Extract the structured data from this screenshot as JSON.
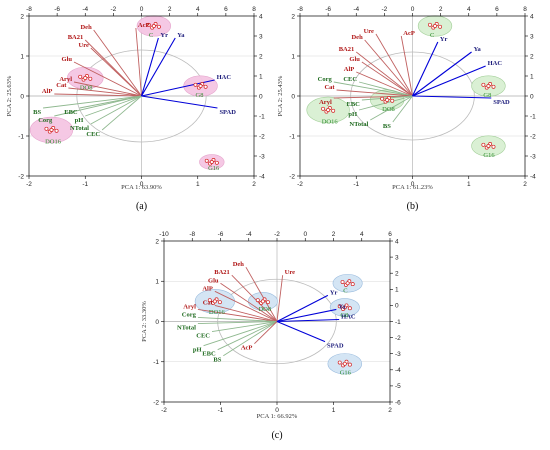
{
  "colors": {
    "red_label": "#b01515",
    "green_label": "#1f6b1f",
    "blue_label": "#1a1a7a",
    "vector_red": "#c06060",
    "vector_green": "#8fb88f",
    "vector_blue": "#0000d8",
    "point": "#d42020",
    "pink_fill": "#f5c6e3",
    "green_fill": "#d9f0d2",
    "blue_fill": "#d2e4f4"
  },
  "chart_data": [
    {
      "type": "scatter",
      "subtype": "pca-biplot",
      "panel_label": "(a)",
      "xlabel": "PCA 1: 63.90%",
      "ylabel": "PCA 2: 25.63%",
      "xlim": [
        -2,
        2
      ],
      "ylim": [
        -2,
        2
      ],
      "x_ticks": [
        "-2",
        "-1",
        "0",
        "1",
        "2"
      ],
      "y_ticks": [
        "2",
        "1",
        "0",
        "-1",
        "-2"
      ],
      "top_xlim": [
        -8,
        8
      ],
      "top_ticks": [
        "-8",
        "-6",
        "-4",
        "-2",
        "0",
        "2",
        "4",
        "6",
        "8"
      ],
      "right_ylim": [
        -4,
        4
      ],
      "right_ticks": [
        "4",
        "3",
        "2",
        "1",
        "0",
        "-1",
        "-2",
        "-3",
        "-4"
      ],
      "highlight_fill": "pink_fill",
      "variables": [
        {
          "name": "Deh",
          "group": "red",
          "x": -0.85,
          "y": 1.65
        },
        {
          "name": "AcP",
          "group": "red",
          "x": -0.1,
          "y": 1.7
        },
        {
          "name": "BA21",
          "group": "red",
          "x": -1.0,
          "y": 1.4
        },
        {
          "name": "Ure",
          "group": "red",
          "x": -0.9,
          "y": 1.2
        },
        {
          "name": "Glu",
          "group": "red",
          "x": -1.2,
          "y": 0.85
        },
        {
          "name": "Aryl",
          "group": "red",
          "x": -1.2,
          "y": 0.35
        },
        {
          "name": "Cat",
          "group": "red",
          "x": -1.3,
          "y": 0.2
        },
        {
          "name": "AlP",
          "group": "red",
          "x": -1.55,
          "y": 0.05
        },
        {
          "name": "BS",
          "group": "green",
          "x": -1.75,
          "y": -0.3
        },
        {
          "name": "Corg",
          "group": "green",
          "x": -1.55,
          "y": -0.5
        },
        {
          "name": "EBC",
          "group": "green",
          "x": -1.1,
          "y": -0.3
        },
        {
          "name": "pH",
          "group": "green",
          "x": -1.0,
          "y": -0.5
        },
        {
          "name": "NTotal",
          "group": "green",
          "x": -0.9,
          "y": -0.7
        },
        {
          "name": "CEC",
          "group": "green",
          "x": -0.7,
          "y": -0.85
        },
        {
          "name": "Yr",
          "group": "blue",
          "x": 0.3,
          "y": 1.45
        },
        {
          "name": "Ya",
          "group": "blue",
          "x": 0.6,
          "y": 1.45
        },
        {
          "name": "HAC",
          "group": "blue",
          "x": 1.3,
          "y": 0.4
        },
        {
          "name": "SPAD",
          "group": "blue",
          "x": 1.35,
          "y": -0.3
        }
      ],
      "groups": [
        {
          "name": "C",
          "x": 0.22,
          "y": 1.75,
          "r": 0.3
        },
        {
          "name": "DO8",
          "x": -1.0,
          "y": 0.45,
          "r": 0.32
        },
        {
          "name": "G8",
          "x": 1.05,
          "y": 0.25,
          "r": 0.3
        },
        {
          "name": "DO16",
          "x": -1.6,
          "y": -0.85,
          "r": 0.38
        },
        {
          "name": "G16",
          "x": 1.25,
          "y": -1.65,
          "r": 0.22
        }
      ],
      "circle_radius": 1.15
    },
    {
      "type": "scatter",
      "subtype": "pca-biplot",
      "panel_label": "(b)",
      "xlabel": "PCA 1: 61.23%",
      "ylabel": "PCA 2: 25.43%",
      "xlim": [
        -2,
        2
      ],
      "ylim": [
        -2,
        2
      ],
      "x_ticks": [
        "-2",
        "-1",
        "0",
        "1",
        "2"
      ],
      "y_ticks": [
        "2",
        "1",
        "0",
        "-1",
        "-2"
      ],
      "top_xlim": [
        -8,
        8
      ],
      "top_ticks": [
        "-8",
        "-6",
        "-4",
        "-2",
        "0",
        "2",
        "4",
        "6",
        "8"
      ],
      "right_ylim": [
        -4,
        4
      ],
      "right_ticks": [
        "4",
        "3",
        "2",
        "1",
        "0",
        "-1",
        "-2",
        "-3",
        "-4"
      ],
      "highlight_fill": "green_fill",
      "variables": [
        {
          "name": "Ure",
          "group": "red",
          "x": -0.65,
          "y": 1.55
        },
        {
          "name": "Deh",
          "group": "red",
          "x": -0.85,
          "y": 1.4
        },
        {
          "name": "AcP",
          "group": "red",
          "x": -0.2,
          "y": 1.5
        },
        {
          "name": "BA21",
          "group": "red",
          "x": -1.0,
          "y": 1.1
        },
        {
          "name": "Glu",
          "group": "red",
          "x": -0.9,
          "y": 0.85
        },
        {
          "name": "AlP",
          "group": "red",
          "x": -1.0,
          "y": 0.6
        },
        {
          "name": "Corg",
          "group": "green",
          "x": -1.4,
          "y": 0.35
        },
        {
          "name": "CEC",
          "group": "green",
          "x": -0.95,
          "y": 0.35
        },
        {
          "name": "Cat",
          "group": "red",
          "x": -1.35,
          "y": 0.15
        },
        {
          "name": "Aryl",
          "group": "red",
          "x": -1.4,
          "y": -0.05
        },
        {
          "name": "EBC",
          "group": "green",
          "x": -0.9,
          "y": -0.1
        },
        {
          "name": "pH",
          "group": "green",
          "x": -0.95,
          "y": -0.35
        },
        {
          "name": "NTotal",
          "group": "green",
          "x": -0.75,
          "y": -0.6
        },
        {
          "name": "BS",
          "group": "green",
          "x": -0.35,
          "y": -0.65
        },
        {
          "name": "Yr",
          "group": "blue",
          "x": 0.45,
          "y": 1.35
        },
        {
          "name": "Ya",
          "group": "blue",
          "x": 1.05,
          "y": 1.1
        },
        {
          "name": "HAC",
          "group": "blue",
          "x": 1.3,
          "y": 0.75
        },
        {
          "name": "SPAD",
          "group": "blue",
          "x": 1.4,
          "y": -0.05
        }
      ],
      "groups": [
        {
          "name": "C",
          "x": 0.4,
          "y": 1.75,
          "r": 0.3
        },
        {
          "name": "DO8",
          "x": -0.45,
          "y": -0.1,
          "r": 0.3
        },
        {
          "name": "G8",
          "x": 1.35,
          "y": 0.25,
          "r": 0.3
        },
        {
          "name": "DO16",
          "x": -1.5,
          "y": -0.35,
          "r": 0.38
        },
        {
          "name": "G16",
          "x": 1.35,
          "y": -1.25,
          "r": 0.3
        }
      ],
      "circle_radius": 1.1
    },
    {
      "type": "scatter",
      "subtype": "pca-biplot",
      "panel_label": "(c)",
      "xlabel": "PCA 1: 66.92%",
      "ylabel": "PCA 2: 33.30%",
      "xlim": [
        -2,
        2
      ],
      "ylim": [
        -2,
        2
      ],
      "x_ticks": [
        "-2",
        "-1",
        "0",
        "1",
        "2"
      ],
      "y_ticks": [
        "2",
        "1",
        "0",
        "-1",
        "-2"
      ],
      "top_xlim": [
        -10,
        6
      ],
      "top_ticks": [
        "-10",
        "-8",
        "-6",
        "-4",
        "-2",
        "0",
        "2",
        "4",
        "6"
      ],
      "right_ylim": [
        -6,
        4
      ],
      "right_ticks": [
        "4",
        "3",
        "2",
        "1",
        "0",
        "-1",
        "-2",
        "-3",
        "-4",
        "-5",
        "-6"
      ],
      "highlight_fill": "blue_fill",
      "variables": [
        {
          "name": "Deh",
          "group": "red",
          "x": -0.55,
          "y": 1.35
        },
        {
          "name": "Ure",
          "group": "red",
          "x": 0.1,
          "y": 1.15
        },
        {
          "name": "BA21",
          "group": "red",
          "x": -0.8,
          "y": 1.15
        },
        {
          "name": "Glu",
          "group": "red",
          "x": -1.0,
          "y": 0.95
        },
        {
          "name": "AlP",
          "group": "red",
          "x": -1.1,
          "y": 0.75
        },
        {
          "name": "Cat",
          "group": "red",
          "x": -1.1,
          "y": 0.4
        },
        {
          "name": "Aryl",
          "group": "red",
          "x": -1.4,
          "y": 0.3
        },
        {
          "name": "Corg",
          "group": "green",
          "x": -1.4,
          "y": 0.1
        },
        {
          "name": "NTotal",
          "group": "green",
          "x": -1.4,
          "y": -0.05
        },
        {
          "name": "CEC",
          "group": "green",
          "x": -1.15,
          "y": -0.25
        },
        {
          "name": "pH",
          "group": "green",
          "x": -1.3,
          "y": -0.6
        },
        {
          "name": "EBC",
          "group": "green",
          "x": -1.05,
          "y": -0.7
        },
        {
          "name": "BS",
          "group": "green",
          "x": -0.95,
          "y": -0.85
        },
        {
          "name": "AcP",
          "group": "red",
          "x": -0.4,
          "y": -0.55
        },
        {
          "name": "Yr",
          "group": "blue",
          "x": 0.9,
          "y": 0.65
        },
        {
          "name": "Ya",
          "group": "blue",
          "x": 1.05,
          "y": 0.3
        },
        {
          "name": "HAC",
          "group": "blue",
          "x": 1.1,
          "y": 0.05
        },
        {
          "name": "SPAD",
          "group": "blue",
          "x": 0.85,
          "y": -0.5
        }
      ],
      "groups": [
        {
          "name": "C",
          "x": 1.25,
          "y": 0.95,
          "r": 0.26
        },
        {
          "name": "DO8",
          "x": -0.25,
          "y": 0.5,
          "r": 0.26
        },
        {
          "name": "G8",
          "x": 1.2,
          "y": 0.35,
          "r": 0.26
        },
        {
          "name": "DO16",
          "x": -1.1,
          "y": 0.5,
          "r": 0.35
        },
        {
          "name": "G16",
          "x": 1.2,
          "y": -1.05,
          "r": 0.3
        }
      ],
      "circle_radius": 1.05
    }
  ]
}
